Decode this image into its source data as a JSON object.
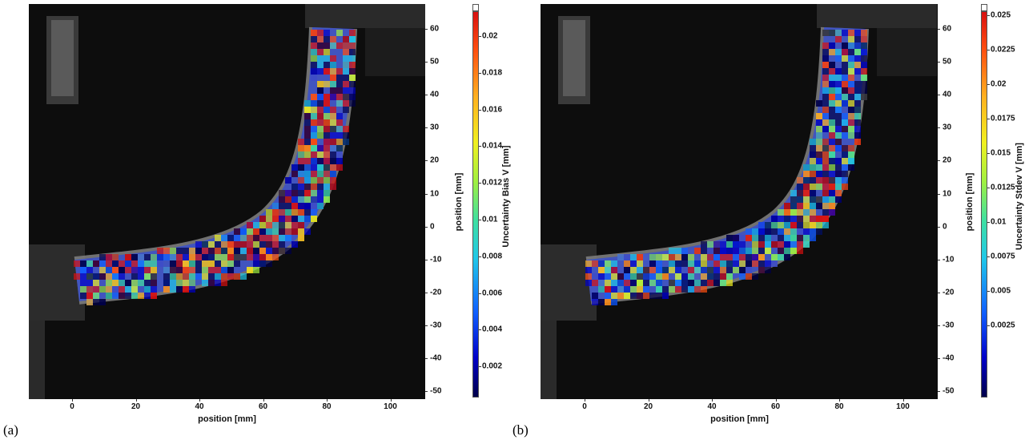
{
  "panels": [
    {
      "caption": "(a)",
      "xlabel": "position [mm]",
      "ylabel": "position [mm]",
      "colorbar_label": "Uncertainty Bias V [mm]",
      "xticks": [
        "0",
        "20",
        "40",
        "60",
        "80",
        "100"
      ],
      "yticks": [
        "60",
        "50",
        "40",
        "30",
        "20",
        "10",
        "0",
        "-10",
        "-20",
        "-30",
        "-40",
        "-50"
      ],
      "cticks": [
        "0.02",
        "0.018",
        "0.016",
        "0.014",
        "0.012",
        "0.01",
        "0.008",
        "0.006",
        "0.004",
        "0.002"
      ]
    },
    {
      "caption": "(b)",
      "xlabel": "position [mm]",
      "ylabel": "position [mm]",
      "colorbar_label": "Uncertainty Stdev V [mm]",
      "xticks": [
        "0",
        "20",
        "40",
        "60",
        "80",
        "100"
      ],
      "yticks": [
        "60",
        "50",
        "40",
        "30",
        "20",
        "10",
        "0",
        "-10",
        "-20",
        "-30",
        "-40",
        "-50"
      ],
      "cticks": [
        "0.025",
        "0.0225",
        "0.02",
        "0.0175",
        "0.015",
        "0.0125",
        "0.01",
        "0.0075",
        "0.005",
        "0.0025"
      ]
    }
  ],
  "colormap": [
    "#00004a",
    "#0000c8",
    "#1060ff",
    "#20c8e8",
    "#40e0a0",
    "#a0f040",
    "#f0f020",
    "#ffb020",
    "#ff5010",
    "#d81010"
  ]
}
